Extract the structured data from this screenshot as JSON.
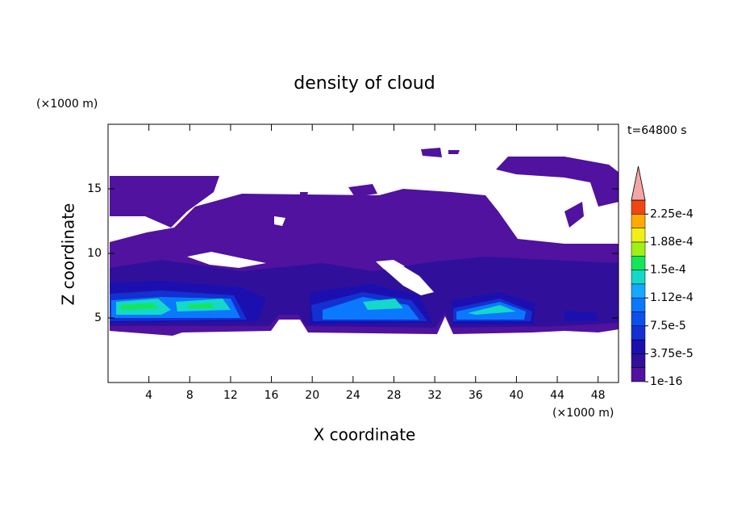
{
  "chart_data": {
    "type": "contour",
    "title": "density of cloud",
    "x_label": "X coordinate",
    "y_label": "Z coordinate",
    "x_unit": "(×1000 m)",
    "y_unit": "(×1000 m)",
    "time_label": "t=64800 s",
    "xlim": [
      0,
      50
    ],
    "xticks": [
      4,
      8,
      12,
      16,
      20,
      24,
      28,
      32,
      36,
      40,
      44,
      48
    ],
    "ylim": [
      0,
      20
    ],
    "yticks": [
      5,
      10,
      15
    ],
    "colorbar": {
      "lim": [
        0,
        0.00024375
      ],
      "ticks": [
        {
          "value": 1e-16,
          "label": "1e-16"
        },
        {
          "value": 3.75e-05,
          "label": "3.75e-5"
        },
        {
          "value": 7.5e-05,
          "label": "7.5e-5"
        },
        {
          "value": 0.0001125,
          "label": "1.12e-4"
        },
        {
          "value": 0.00015,
          "label": "1.5e-4"
        },
        {
          "value": 0.0001875,
          "label": "1.88e-4"
        },
        {
          "value": 0.000225,
          "label": "2.25e-4"
        }
      ],
      "colors": [
        "#50129f",
        "#30109a",
        "#1c0fb0",
        "#1430d0",
        "#0a50ee",
        "#0a78ff",
        "#14a8ff",
        "#14d8c8",
        "#14e65a",
        "#a0f014",
        "#f0f014",
        "#ffaa00",
        "#f04614"
      ],
      "extend_color": "#f4a6a6"
    }
  }
}
